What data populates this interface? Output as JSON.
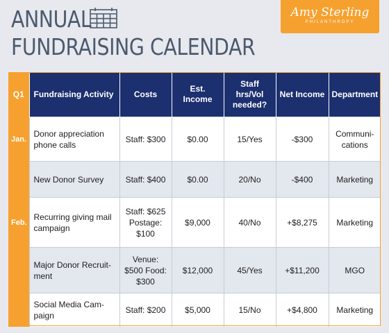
{
  "header": {
    "title_line1": "ANNUAL",
    "title_line2": "FUNDRAISING CALENDAR",
    "logo_script": "Amy Sterling",
    "logo_sub": "PHILANTHROPY"
  },
  "colors": {
    "accent": "#f6a12f",
    "header_bg": "#1c2f6f",
    "title_text": "#4c5a6d"
  },
  "table": {
    "columns": [
      "Q1",
      "Fundraising Activity",
      "Costs",
      "Est. Income",
      "Staff hrs/Vol needed?",
      "Net Income",
      "Department"
    ],
    "rows": [
      {
        "month": "Jan.",
        "activity": "Donor appreciation phone calls",
        "costs": "Staff: $300",
        "est_income": "$0.00",
        "staff": "15/Yes",
        "net": "-$300",
        "dept": "Communi-cations"
      },
      {
        "month": "",
        "activity": "New Donor Survey",
        "costs": "Staff: $400",
        "est_income": "$0.00",
        "staff": "20/No",
        "net": "-$400",
        "dept": "Marketing"
      },
      {
        "month": "Feb.",
        "activity": "Recurring giving mail campaign",
        "costs": "Staff: $625 Postage: $100",
        "est_income": "$9,000",
        "staff": "40/No",
        "net": "+$8,275",
        "dept": "Marketing"
      },
      {
        "month": "",
        "activity": "Major Donor Recruit-ment",
        "costs": "Venue: $500 Food: $300",
        "est_income": "$12,000",
        "staff": "45/Yes",
        "net": "+$11,200",
        "dept": "MGO"
      },
      {
        "month": "",
        "activity": "Social Media Cam-paign",
        "costs": "Staff: $200",
        "est_income": "$5,000",
        "staff": "15/No",
        "net": "+$4,800",
        "dept": "Marketing"
      }
    ]
  }
}
